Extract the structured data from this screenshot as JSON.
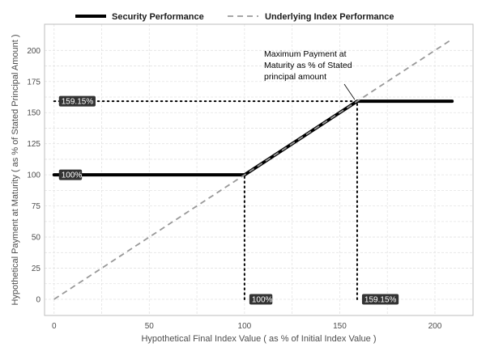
{
  "chart_data": {
    "type": "line",
    "xlabel": "Hypothetical Final Index Value ( as % of Initial Index Value )",
    "ylabel": "Hypothetical Payment at Maturity ( as % of Stated Principal Amount )",
    "xlim": [
      -5,
      220
    ],
    "ylim": [
      -13,
      221
    ],
    "x_ticks": [
      0,
      50,
      100,
      150,
      200
    ],
    "y_ticks": [
      0,
      25,
      50,
      75,
      100,
      125,
      150,
      175,
      200
    ],
    "grid": true,
    "legend_position": "top",
    "series": [
      {
        "name": "Security Performance",
        "color": "#000000",
        "style": "solid",
        "x": [
          0,
          100,
          159.15,
          209
        ],
        "y": [
          100,
          100,
          159.15,
          159.15
        ]
      },
      {
        "name": "Underlying Index Performance",
        "color": "#999999",
        "style": "dashed",
        "x": [
          0,
          209
        ],
        "y": [
          0,
          209
        ]
      }
    ],
    "annotation": {
      "lines": [
        "Maximum Payment at",
        "Maturity as % of Stated",
        "principal amount"
      ],
      "x": 159.15,
      "y": 159.15
    },
    "reference_lines": [
      {
        "axis": "y",
        "value": 159.15,
        "from": 0,
        "to": 159.15
      },
      {
        "axis": "x",
        "value": 100,
        "from": 0,
        "to": 100
      },
      {
        "axis": "x",
        "value": 159.15,
        "from": 0,
        "to": 159.15
      }
    ],
    "value_labels": [
      {
        "text": "159.15%",
        "x": 0,
        "y": 159.15
      },
      {
        "text": "100%",
        "x": 0,
        "y": 100
      },
      {
        "text": "100%",
        "x": 100,
        "y": 0
      },
      {
        "text": "159.15%",
        "x": 159.15,
        "y": 0
      }
    ]
  }
}
